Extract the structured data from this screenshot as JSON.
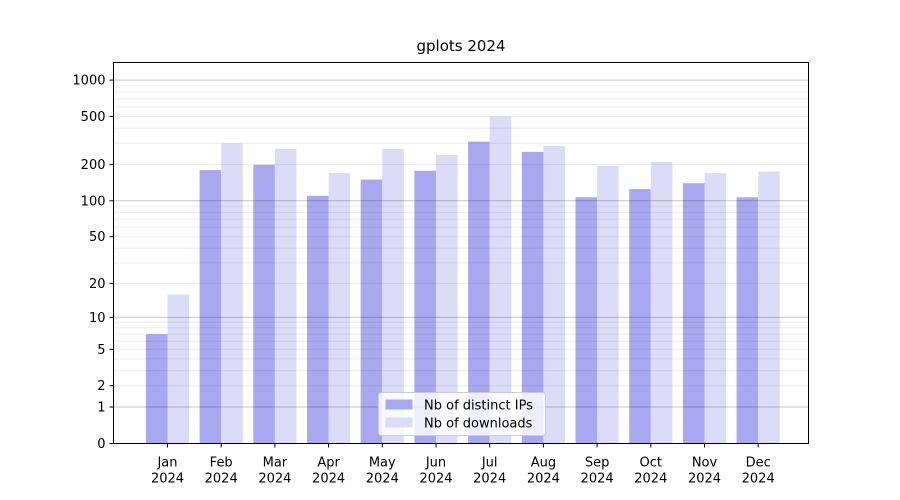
{
  "figure": {
    "background": "#ffffff"
  },
  "chart_data": {
    "type": "bar",
    "title": "gplots 2024",
    "xlabel": "",
    "ylabel": "",
    "year_label": "2024",
    "categories": [
      "Jan",
      "Feb",
      "Mar",
      "Apr",
      "May",
      "Jun",
      "Jul",
      "Aug",
      "Sep",
      "Oct",
      "Nov",
      "Dec"
    ],
    "series": [
      {
        "name": "Nb of distinct IPs",
        "color": "#a8a8f0",
        "values": [
          7,
          180,
          199,
          110,
          150,
          178,
          310,
          255,
          107,
          125,
          140,
          107
        ]
      },
      {
        "name": "Nb of downloads",
        "color": "#dcdcf8",
        "values": [
          16,
          300,
          270,
          170,
          270,
          240,
          500,
          285,
          195,
          210,
          170,
          175
        ]
      }
    ],
    "y_axis": {
      "scale": "log1p",
      "ticks": [
        0,
        1,
        2,
        5,
        10,
        20,
        50,
        100,
        200,
        500,
        1000
      ],
      "decade_gridlines": [
        1,
        10,
        100,
        1000
      ],
      "range_max": 1400
    },
    "legend": {
      "entries": [
        "Nb of distinct IPs",
        "Nb of downloads"
      ],
      "position": "lower-center-inside"
    },
    "grid": true
  }
}
